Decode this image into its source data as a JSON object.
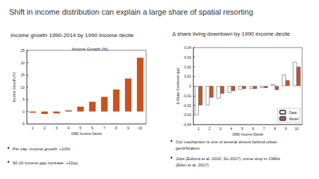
{
  "title": "Shift in income distribution can explain a large share of spatial resorting",
  "chart_data": [
    {
      "type": "bar",
      "caption": "Income growth 1990-2014 by 1990 Income decile",
      "title": "Income Growth (%)",
      "x_label": "1990 Income Decile",
      "y_label": "Income Growth (%)",
      "categories": [
        "1",
        "2",
        "3",
        "4",
        "5",
        "6",
        "7",
        "8",
        "9",
        "10"
      ],
      "values": [
        -0.5,
        -1,
        -0.8,
        0.5,
        2,
        4,
        6,
        9,
        13.5,
        22
      ],
      "color": "#c8531f",
      "ylim": [
        -5,
        25
      ],
      "yticks": [
        -5,
        0,
        5,
        10,
        15,
        20,
        25
      ],
      "grid": false,
      "notes": [
        "Per cap. income growth: +10%",
        "90-10 income gap increase: +22pp"
      ]
    },
    {
      "type": "bar",
      "caption": "Δ share living downtown by 1990 income decile",
      "x_label": "1990 Income Decile",
      "y_label": "Δ Share Downtown (pp)",
      "categories": [
        "1",
        "2",
        "3",
        "4",
        "5",
        "6",
        "7",
        "8",
        "9",
        "10"
      ],
      "series": [
        {
          "name": "Data",
          "color": "#ffffff",
          "values": [
            -0.03,
            -0.02,
            -0.013,
            -0.007,
            -0.004,
            -0.003,
            -0.002,
            0.002,
            0.012,
            0.025
          ]
        },
        {
          "name": "Model",
          "color": "#c8531f",
          "values": [
            -0.02,
            -0.012,
            -0.008,
            -0.005,
            -0.003,
            -0.003,
            -0.002,
            -0.004,
            0.006,
            0.02
          ]
        }
      ],
      "ylim": [
        -0.04,
        0.04
      ],
      "yticks": [
        -0.04,
        -0.03,
        -0.02,
        -0.01,
        0,
        0.01,
        0.02,
        0.03,
        0.04
      ],
      "grid": false,
      "legend": "lower right",
      "notes": [
        "Our mechanism is one of several drivers behind urban gentrification",
        "Jobs (Edlund et al. 2016, Su 2017), crime drop in 1990s (Ellen et al. 2017)"
      ]
    }
  ]
}
